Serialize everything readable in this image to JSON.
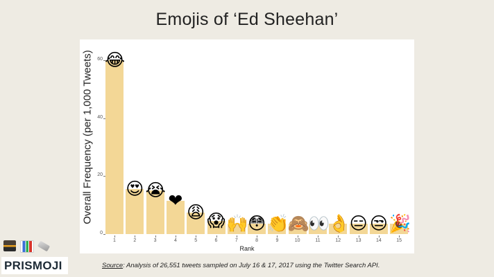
{
  "title": "Emojis of ‘Ed Sheehan’",
  "chart_data": {
    "type": "bar",
    "title": "Emojis of ‘Ed Sheehan’",
    "xlabel": "Rank",
    "ylabel": "Overall Frequency (per 1,000 Tweets)",
    "ylim": [
      0,
      62
    ],
    "yticks": [
      0,
      20,
      40,
      60
    ],
    "grid": false,
    "legend": null,
    "categories": [
      "1",
      "2",
      "3",
      "4",
      "5",
      "6",
      "7",
      "8",
      "9",
      "10",
      "11",
      "12",
      "13",
      "14",
      "15"
    ],
    "values": [
      60.0,
      15.5,
      15.0,
      11.5,
      7.5,
      4.5,
      3.5,
      3.5,
      3.5,
      3.5,
      3.5,
      3.5,
      3.5,
      3.5,
      3.5
    ],
    "emojis": [
      {
        "rank": 1,
        "name": "face-with-tears-of-joy",
        "glyph": "😂"
      },
      {
        "rank": 2,
        "name": "smiling-face-with-heart-eyes",
        "glyph": "😍"
      },
      {
        "rank": 3,
        "name": "loudly-crying-face",
        "glyph": "😭"
      },
      {
        "rank": 4,
        "name": "red-heart",
        "glyph": "❤"
      },
      {
        "rank": 5,
        "name": "weary-face",
        "glyph": "😩"
      },
      {
        "rank": 6,
        "name": "face-screaming-in-fear",
        "glyph": "😱"
      },
      {
        "rank": 7,
        "name": "raising-hands",
        "glyph": "🙌"
      },
      {
        "rank": 8,
        "name": "flushed-face",
        "glyph": "😳"
      },
      {
        "rank": 9,
        "name": "clapping-hands",
        "glyph": "👏"
      },
      {
        "rank": 10,
        "name": "see-no-evil-monkey",
        "glyph": "🙈"
      },
      {
        "rank": 11,
        "name": "eyes",
        "glyph": "👀"
      },
      {
        "rank": 12,
        "name": "ok-hand",
        "glyph": "👌"
      },
      {
        "rank": 13,
        "name": "expressionless-face",
        "glyph": "😑"
      },
      {
        "rank": 14,
        "name": "unamused-face",
        "glyph": "😒"
      },
      {
        "rank": 15,
        "name": "party-popper",
        "glyph": "🎉"
      }
    ],
    "bar_color": "#f3d796"
  },
  "footer": {
    "brand": "PRISMOJI",
    "source_label": "Source",
    "source_text": ": Analysis of 26,551 tweets sampled on July 16 & 17, 2017 using the Twitter Search API."
  },
  "colors": {
    "background": "#eeebe3",
    "panel": "#ffffff",
    "bar": "#f3d796",
    "brand_text": "#1d2a35"
  }
}
